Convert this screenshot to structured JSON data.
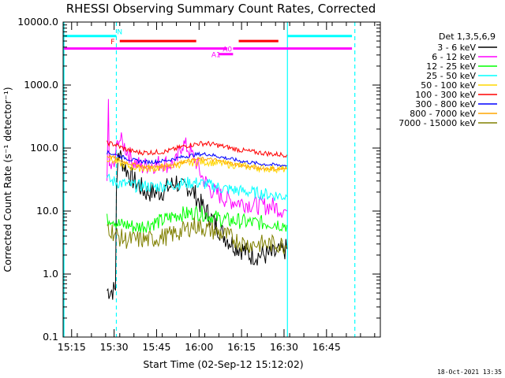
{
  "footer": {
    "timestamp": "18-Oct-2021 13:35"
  },
  "chart_data": {
    "type": "line",
    "title": "RHESSI Observing Summary Count Rates, Corrected",
    "xlabel": "Start Time (02-Sep-12 15:12:02)",
    "ylabel": "Corrected Count Rate (s⁻¹ detector⁻¹)",
    "y_scale": "log",
    "ylim": [
      0.1,
      10000
    ],
    "xlim_minutes": [
      0,
      112
    ],
    "x_ticks": [
      {
        "min": 3,
        "label": "15:15"
      },
      {
        "min": 18,
        "label": "15:30"
      },
      {
        "min": 33,
        "label": "15:45"
      },
      {
        "min": 48,
        "label": "16:00"
      },
      {
        "min": 63,
        "label": "16:15"
      },
      {
        "min": 78,
        "label": "16:30"
      },
      {
        "min": 93,
        "label": "16:45"
      }
    ],
    "y_ticks": [
      {
        "v": 0.1,
        "label": "0.1"
      },
      {
        "v": 1,
        "label": "1.0"
      },
      {
        "v": 10,
        "label": "10.0"
      },
      {
        "v": 100,
        "label": "100.0"
      },
      {
        "v": 1000,
        "label": "1000.0"
      },
      {
        "v": 10000,
        "label": "10000.0"
      }
    ],
    "legend_title": "Det 1,3,5,6,9",
    "legend_position": "outside-right",
    "series": [
      {
        "name": "3 - 6 keV",
        "color": "#000000",
        "noise": 0.35,
        "points": [
          [
            15.5,
            0.55
          ],
          [
            18.5,
            0.55
          ],
          [
            18.8,
            20
          ],
          [
            19.5,
            90
          ],
          [
            21,
            60
          ],
          [
            23,
            40
          ],
          [
            25,
            30
          ],
          [
            27,
            25
          ],
          [
            29,
            20
          ],
          [
            31,
            20
          ],
          [
            34,
            20
          ],
          [
            36,
            22
          ],
          [
            38,
            25
          ],
          [
            40,
            30
          ],
          [
            41.5,
            22
          ],
          [
            44,
            25
          ],
          [
            46,
            20
          ],
          [
            49,
            12
          ],
          [
            52,
            8
          ],
          [
            54,
            6
          ],
          [
            57,
            4
          ],
          [
            60,
            3
          ],
          [
            63,
            2.5
          ],
          [
            66,
            2
          ],
          [
            70,
            2
          ],
          [
            74,
            2
          ],
          [
            79,
            2.5
          ]
        ]
      },
      {
        "name": "6 - 12 keV",
        "color": "#ff00ff",
        "noise": 0.3,
        "points": [
          [
            15.5,
            30
          ],
          [
            16,
            600
          ],
          [
            16.3,
            50
          ],
          [
            18,
            50
          ],
          [
            19.5,
            150
          ],
          [
            22,
            100
          ],
          [
            25,
            60
          ],
          [
            28,
            50
          ],
          [
            30,
            55
          ],
          [
            33,
            55
          ],
          [
            35,
            60
          ],
          [
            37,
            55
          ],
          [
            40,
            60
          ],
          [
            42,
            120
          ],
          [
            44,
            100
          ],
          [
            47,
            60
          ],
          [
            49,
            35
          ],
          [
            52,
            22
          ],
          [
            55,
            18
          ],
          [
            58,
            15
          ],
          [
            62,
            14
          ],
          [
            66,
            13
          ],
          [
            70,
            12
          ],
          [
            74,
            12
          ],
          [
            79,
            10
          ]
        ]
      },
      {
        "name": "12 - 25 keV",
        "color": "#00ff00",
        "noise": 0.25,
        "points": [
          [
            15.5,
            7
          ],
          [
            17,
            8
          ],
          [
            20,
            6
          ],
          [
            23,
            6
          ],
          [
            26,
            5.5
          ],
          [
            29,
            6
          ],
          [
            32,
            6.5
          ],
          [
            35,
            7
          ],
          [
            38,
            8
          ],
          [
            41,
            9
          ],
          [
            44,
            9
          ],
          [
            47,
            9.5
          ],
          [
            50,
            9
          ],
          [
            53,
            8
          ],
          [
            56,
            7.5
          ],
          [
            59,
            7
          ],
          [
            62,
            7
          ],
          [
            66,
            6.5
          ],
          [
            70,
            6.5
          ],
          [
            74,
            6.5
          ],
          [
            79,
            6
          ]
        ]
      },
      {
        "name": "25 - 50 keV",
        "color": "#00ffff",
        "noise": 0.2,
        "points": [
          [
            15.5,
            32
          ],
          [
            17,
            30
          ],
          [
            20,
            28
          ],
          [
            23,
            26
          ],
          [
            26,
            25
          ],
          [
            29,
            25
          ],
          [
            32,
            24
          ],
          [
            35,
            25
          ],
          [
            38,
            26
          ],
          [
            41,
            27
          ],
          [
            44,
            28
          ],
          [
            47,
            28
          ],
          [
            50,
            27
          ],
          [
            53,
            25
          ],
          [
            56,
            23
          ],
          [
            59,
            22
          ],
          [
            62,
            21
          ],
          [
            66,
            20
          ],
          [
            70,
            19
          ],
          [
            74,
            18
          ],
          [
            79,
            17
          ]
        ]
      },
      {
        "name": "50 - 100 keV",
        "color": "#ffd700",
        "noise": 0.12,
        "points": [
          [
            15.5,
            70
          ],
          [
            18,
            62
          ],
          [
            21,
            55
          ],
          [
            24,
            50
          ],
          [
            27,
            48
          ],
          [
            30,
            47
          ],
          [
            33,
            48
          ],
          [
            36,
            50
          ],
          [
            39,
            53
          ],
          [
            42,
            56
          ],
          [
            45,
            58
          ],
          [
            48,
            60
          ],
          [
            51,
            60
          ],
          [
            54,
            58
          ],
          [
            57,
            56
          ],
          [
            60,
            54
          ],
          [
            63,
            52
          ],
          [
            66,
            50
          ],
          [
            70,
            48
          ],
          [
            74,
            47
          ],
          [
            79,
            46
          ]
        ]
      },
      {
        "name": "100 - 300 keV",
        "color": "#ff0000",
        "noise": 0.08,
        "points": [
          [
            15.5,
            120
          ],
          [
            18,
            115
          ],
          [
            21,
            100
          ],
          [
            24,
            90
          ],
          [
            27,
            85
          ],
          [
            30,
            85
          ],
          [
            33,
            86
          ],
          [
            36,
            88
          ],
          [
            39,
            95
          ],
          [
            42,
            105
          ],
          [
            45,
            112
          ],
          [
            48,
            118
          ],
          [
            51,
            118
          ],
          [
            54,
            112
          ],
          [
            57,
            105
          ],
          [
            60,
            98
          ],
          [
            63,
            92
          ],
          [
            66,
            88
          ],
          [
            70,
            84
          ],
          [
            74,
            80
          ],
          [
            79,
            78
          ]
        ]
      },
      {
        "name": "300 - 800 keV",
        "color": "#0000ff",
        "noise": 0.06,
        "points": [
          [
            15.5,
            85
          ],
          [
            18,
            80
          ],
          [
            21,
            72
          ],
          [
            24,
            65
          ],
          [
            27,
            62
          ],
          [
            30,
            60
          ],
          [
            33,
            61
          ],
          [
            36,
            63
          ],
          [
            39,
            67
          ],
          [
            42,
            72
          ],
          [
            45,
            76
          ],
          [
            48,
            80
          ],
          [
            51,
            80
          ],
          [
            54,
            75
          ],
          [
            57,
            70
          ],
          [
            60,
            66
          ],
          [
            63,
            62
          ],
          [
            66,
            59
          ],
          [
            70,
            56
          ],
          [
            74,
            54
          ],
          [
            79,
            53
          ]
        ]
      },
      {
        "name": "800 - 7000 keV",
        "color": "#ffa500",
        "noise": 0.06,
        "points": [
          [
            15.5,
            75
          ],
          [
            18,
            70
          ],
          [
            21,
            62
          ],
          [
            24,
            56
          ],
          [
            27,
            52
          ],
          [
            30,
            50
          ],
          [
            33,
            50
          ],
          [
            36,
            52
          ],
          [
            39,
            55
          ],
          [
            42,
            60
          ],
          [
            45,
            64
          ],
          [
            48,
            67
          ],
          [
            51,
            67
          ],
          [
            54,
            64
          ],
          [
            57,
            60
          ],
          [
            60,
            56
          ],
          [
            63,
            53
          ],
          [
            66,
            50
          ],
          [
            70,
            48
          ],
          [
            74,
            47
          ],
          [
            79,
            46
          ]
        ]
      },
      {
        "name": "7000 - 15000 keV",
        "color": "#808000",
        "noise": 0.3,
        "points": [
          [
            15.5,
            6
          ],
          [
            17,
            5
          ],
          [
            19,
            4
          ],
          [
            22,
            3.5
          ],
          [
            25,
            3.5
          ],
          [
            28,
            3.5
          ],
          [
            31,
            3.5
          ],
          [
            34,
            3.8
          ],
          [
            37,
            4
          ],
          [
            40,
            4.5
          ],
          [
            43,
            5
          ],
          [
            46,
            6
          ],
          [
            49,
            5.5
          ],
          [
            52,
            5
          ],
          [
            55,
            4.5
          ],
          [
            58,
            4
          ],
          [
            61,
            3.5
          ],
          [
            64,
            3
          ],
          [
            68,
            3
          ],
          [
            72,
            3
          ],
          [
            76,
            3
          ],
          [
            79,
            2.8
          ]
        ]
      }
    ],
    "vertical_lines": [
      {
        "min": 0.3,
        "color": "#00ffff",
        "style": "solid"
      },
      {
        "min": 18.8,
        "color": "#00ffff",
        "style": "dashed"
      },
      {
        "min": 79.2,
        "color": "#00ffff",
        "style": "solid"
      },
      {
        "min": 103,
        "color": "#00ffff",
        "style": "dashed"
      }
    ],
    "state_bars": [
      {
        "label": "N",
        "color": "#00ffff",
        "y": 6000,
        "segments": [
          [
            0.3,
            18.8
          ],
          [
            79.2,
            102
          ]
        ],
        "label_at": 20
      },
      {
        "label": "F",
        "color": "#ff0000",
        "y": 5000,
        "segments": [
          [
            20,
            47
          ],
          [
            62,
            76
          ]
        ],
        "label_at": 17.5
      },
      {
        "label": "A0",
        "color": "#ff00ff",
        "y": 3800,
        "segments": [
          [
            0.3,
            58
          ],
          [
            60,
            102
          ]
        ],
        "label_at": 58
      },
      {
        "label": "A1",
        "color": "#ff00ff",
        "y": 3100,
        "segments": [
          [
            55,
            60
          ]
        ],
        "label_at": 54
      }
    ]
  }
}
